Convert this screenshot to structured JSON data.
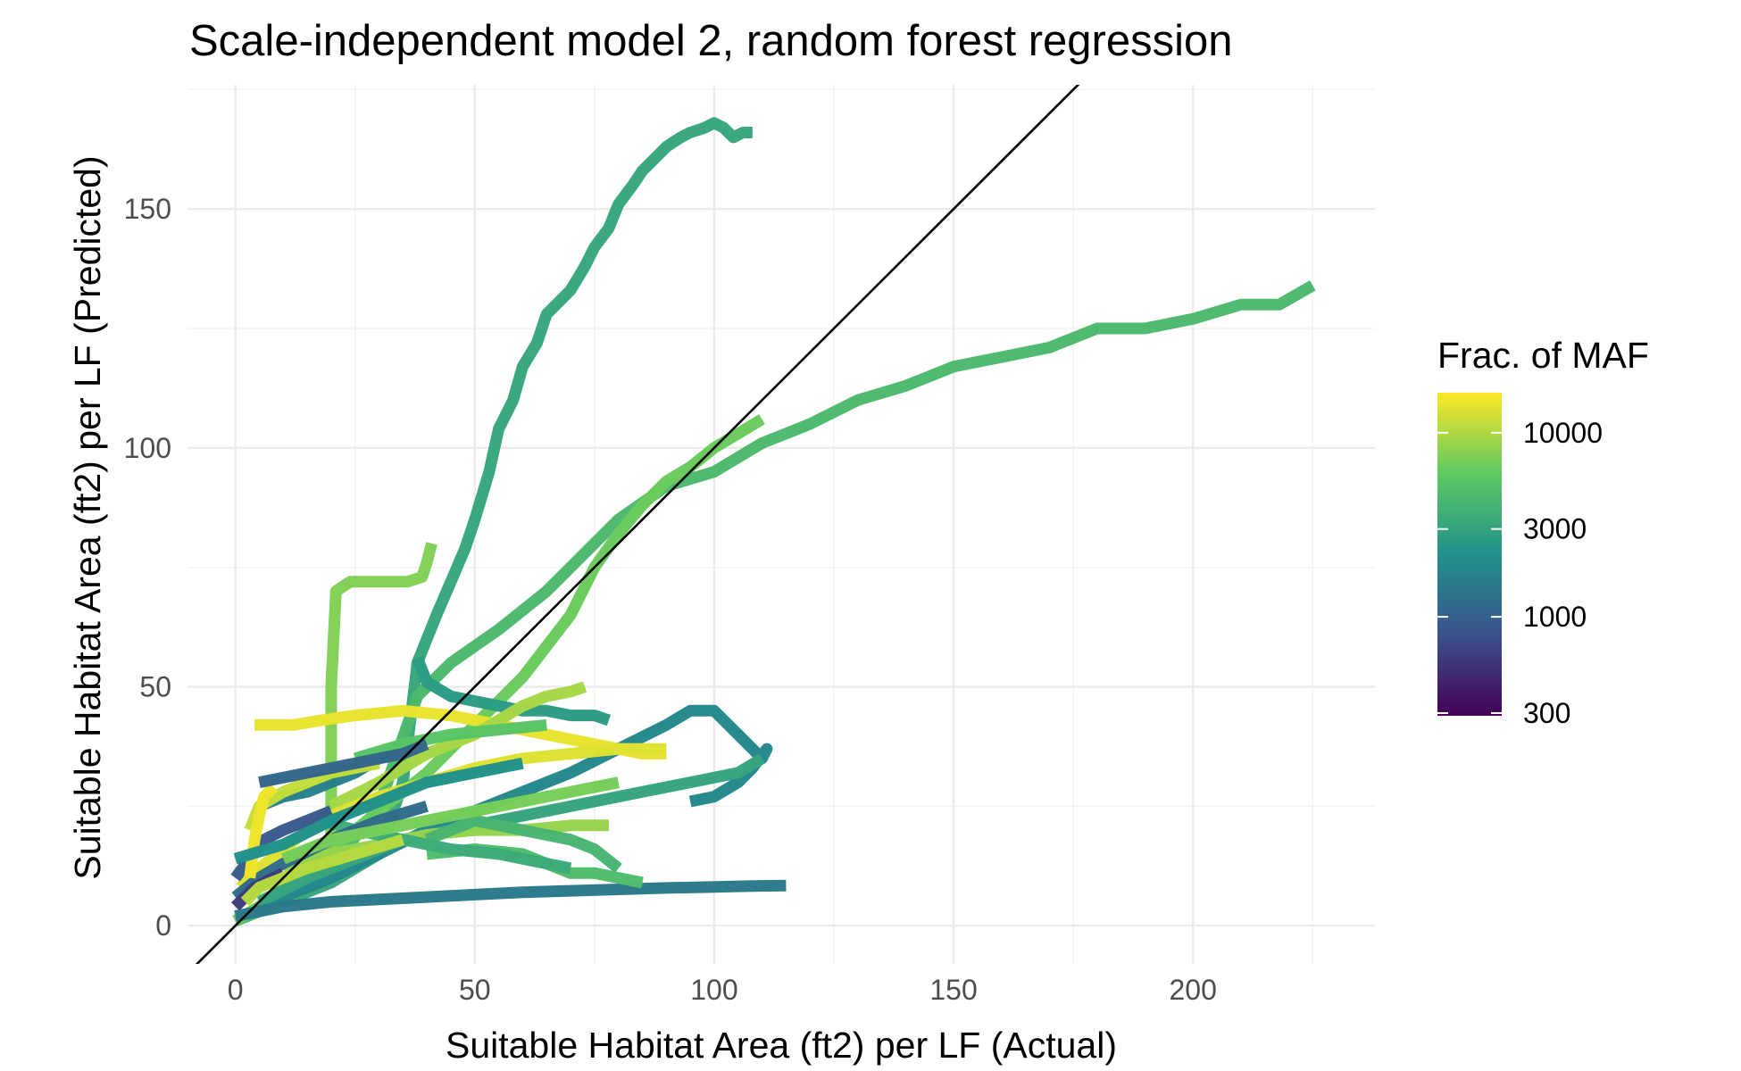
{
  "chart_data": {
    "type": "line",
    "title": "Scale-independent model 2, random forest regression",
    "xlabel": "Suitable Habitat Area (ft2) per LF (Actual)",
    "ylabel": "Suitable Habitat Area (ft2) per LF (Predicted)",
    "xlim": [
      -10,
      238
    ],
    "ylim": [
      -8,
      176
    ],
    "x_ticks": [
      0,
      50,
      100,
      150,
      200
    ],
    "x_tick_labels": [
      "0",
      "50",
      "100",
      "150",
      "200"
    ],
    "y_ticks": [
      0,
      50,
      100,
      150
    ],
    "y_tick_labels": [
      "0",
      "50",
      "100",
      "150"
    ],
    "grid": true,
    "reference_line": {
      "slope": 1,
      "intercept": 0,
      "color": "#000000"
    },
    "legend": {
      "title": "Frac. of MAF",
      "position": "right",
      "scale": "log",
      "breaks": [
        300,
        1000,
        3000,
        10000
      ],
      "break_labels": [
        "300",
        "1000",
        "3000",
        "10000"
      ],
      "limits": [
        290,
        16500
      ],
      "palette": [
        "#440154",
        "#3b528b",
        "#21918c",
        "#5ec962",
        "#fde725"
      ]
    },
    "series": [
      {
        "color_value": 3200,
        "x": [
          0,
          5,
          10,
          15,
          20,
          25,
          30,
          35,
          38,
          40,
          42,
          45,
          48,
          50,
          53,
          55,
          58,
          60,
          63,
          65,
          68,
          70,
          73,
          75,
          78,
          80,
          83,
          85,
          88,
          90,
          93,
          95,
          98,
          100,
          102,
          104,
          106,
          108
        ],
        "y": [
          1,
          3,
          5,
          7,
          9,
          12,
          15,
          30,
          55,
          60,
          65,
          72,
          79,
          85,
          95,
          104,
          110,
          117,
          122,
          128,
          131,
          133,
          138,
          142,
          146,
          151,
          155,
          158,
          161,
          163,
          165,
          166,
          167,
          168,
          167,
          165,
          166,
          166
        ]
      },
      {
        "color_value": 4500,
        "x": [
          0,
          10,
          20,
          30,
          38,
          45,
          55,
          65,
          75,
          80,
          90,
          100,
          110,
          120,
          130,
          140,
          150,
          160,
          170,
          180,
          190,
          200,
          210,
          218,
          225
        ],
        "y": [
          1,
          5,
          12,
          25,
          48,
          55,
          62,
          70,
          80,
          85,
          92,
          95,
          101,
          105,
          110,
          113,
          117,
          119,
          121,
          125,
          125,
          127,
          130,
          130,
          134
        ]
      },
      {
        "color_value": 6500,
        "x": [
          0,
          5,
          10,
          15,
          20,
          25,
          30,
          40,
          50,
          60,
          70,
          75,
          80,
          85,
          90,
          95,
          100,
          105,
          110
        ],
        "y": [
          1,
          4,
          8,
          12,
          16,
          20,
          24,
          32,
          42,
          52,
          65,
          75,
          82,
          88,
          93,
          96,
          100,
          103,
          106
        ]
      },
      {
        "color_value": 7500,
        "x": [
          20,
          20,
          20,
          21,
          24,
          28,
          32,
          36,
          39,
          40,
          41
        ],
        "y": [
          10,
          30,
          50,
          70,
          72,
          72,
          72,
          72,
          73,
          76,
          80
        ]
      },
      {
        "color_value": 2600,
        "x": [
          38,
          40,
          45,
          50,
          55,
          60,
          65,
          70,
          75,
          78
        ],
        "y": [
          56,
          51,
          48,
          47,
          46,
          45,
          45,
          44,
          44,
          43
        ]
      },
      {
        "color_value": 1900,
        "x": [
          5,
          10,
          20,
          30,
          40,
          50,
          60,
          70,
          80,
          90,
          95,
          100,
          105,
          110,
          111,
          108,
          105,
          100,
          95
        ],
        "y": [
          3,
          6,
          10,
          15,
          20,
          24,
          28,
          32,
          37,
          42,
          45,
          45,
          40,
          35,
          37,
          33,
          30,
          27,
          26
        ]
      },
      {
        "color_value": 3100,
        "x": [
          5,
          15,
          25,
          35,
          45,
          55,
          65,
          75,
          85,
          95,
          105,
          110
        ],
        "y": [
          5,
          10,
          14,
          18,
          20,
          22,
          24,
          26,
          28,
          30,
          32,
          35
        ]
      },
      {
        "color_value": 1500,
        "x": [
          0,
          5,
          10,
          20,
          30,
          40,
          50,
          60,
          70,
          80,
          90,
          100,
          108,
          115
        ],
        "y": [
          2,
          3,
          4,
          5,
          5.5,
          6,
          6.5,
          7,
          7.3,
          7.6,
          7.9,
          8.1,
          8.3,
          8.4
        ]
      },
      {
        "color_value": 14500,
        "x": [
          4,
          8,
          12,
          18,
          25,
          35,
          45,
          55,
          65,
          75,
          85,
          90
        ],
        "y": [
          42,
          42,
          42,
          43,
          44,
          45,
          44,
          42,
          40,
          38,
          36,
          36
        ]
      },
      {
        "color_value": 9500,
        "x": [
          20,
          30,
          40,
          50,
          55,
          60,
          65,
          70,
          73
        ],
        "y": [
          25,
          30,
          36,
          40,
          43,
          46,
          48,
          49,
          50
        ]
      },
      {
        "color_value": 13500,
        "x": [
          1,
          5,
          10,
          15,
          20,
          30,
          40,
          50,
          60,
          70,
          80,
          90
        ],
        "y": [
          8,
          12,
          16,
          20,
          23,
          27,
          30,
          33,
          35,
          36,
          37,
          37
        ]
      },
      {
        "color_value": 8500,
        "x": [
          10,
          20,
          30,
          40,
          50,
          60,
          70,
          78
        ],
        "y": [
          12,
          15,
          17,
          19,
          20,
          20,
          21,
          21
        ]
      },
      {
        "color_value": 4800,
        "x": [
          40,
          50,
          60,
          65,
          70,
          75,
          80,
          85
        ],
        "y": [
          15,
          16,
          15,
          13,
          11,
          11,
          10,
          9
        ]
      },
      {
        "color_value": 4200,
        "x": [
          40,
          50,
          60,
          70,
          75,
          80
        ],
        "y": [
          18,
          22,
          20,
          18,
          16,
          12
        ]
      },
      {
        "color_value": 3500,
        "x": [
          18,
          25,
          35,
          45,
          55,
          60,
          65,
          70
        ],
        "y": [
          22,
          20,
          18,
          16,
          15,
          14,
          13,
          12
        ]
      },
      {
        "color_value": 1200,
        "x": [
          0,
          5,
          10,
          20,
          30,
          40
        ],
        "y": [
          6,
          10,
          13,
          18,
          22,
          25
        ]
      },
      {
        "color_value": 900,
        "x": [
          0,
          3,
          6,
          10,
          15,
          20
        ],
        "y": [
          10,
          14,
          18,
          20,
          22,
          24
        ]
      },
      {
        "color_value": 600,
        "x": [
          0,
          2,
          4,
          6,
          8,
          10
        ],
        "y": [
          4,
          6,
          8,
          9,
          10,
          11
        ]
      },
      {
        "color_value": 1700,
        "x": [
          5,
          10,
          15,
          20,
          25,
          30,
          35
        ],
        "y": [
          25,
          27,
          28,
          30,
          32,
          35,
          38
        ]
      },
      {
        "color_value": 11500,
        "x": [
          3,
          5,
          10,
          15,
          20,
          25,
          30
        ],
        "y": [
          20,
          25,
          28,
          30,
          32,
          33,
          34
        ]
      },
      {
        "color_value": 15000,
        "x": [
          3,
          4,
          5,
          6,
          8
        ],
        "y": [
          10,
          18,
          23,
          27,
          29
        ]
      },
      {
        "color_value": 5500,
        "x": [
          25,
          35,
          45,
          55,
          65
        ],
        "y": [
          35,
          38,
          40,
          41,
          42
        ]
      },
      {
        "color_value": 2200,
        "x": [
          0,
          10,
          20,
          30,
          40,
          50,
          60
        ],
        "y": [
          14,
          17,
          22,
          26,
          30,
          32,
          34
        ]
      },
      {
        "color_value": 7000,
        "x": [
          10,
          20,
          30,
          40,
          50,
          60,
          70,
          80
        ],
        "y": [
          14,
          18,
          20,
          22,
          24,
          26,
          28,
          30
        ]
      },
      {
        "color_value": 1100,
        "x": [
          5,
          15,
          25,
          35,
          40
        ],
        "y": [
          30,
          32,
          34,
          36,
          38
        ]
      },
      {
        "color_value": 10500,
        "x": [
          2,
          5,
          10,
          15,
          25,
          35
        ],
        "y": [
          5,
          8,
          10,
          12,
          15,
          18
        ]
      }
    ]
  }
}
